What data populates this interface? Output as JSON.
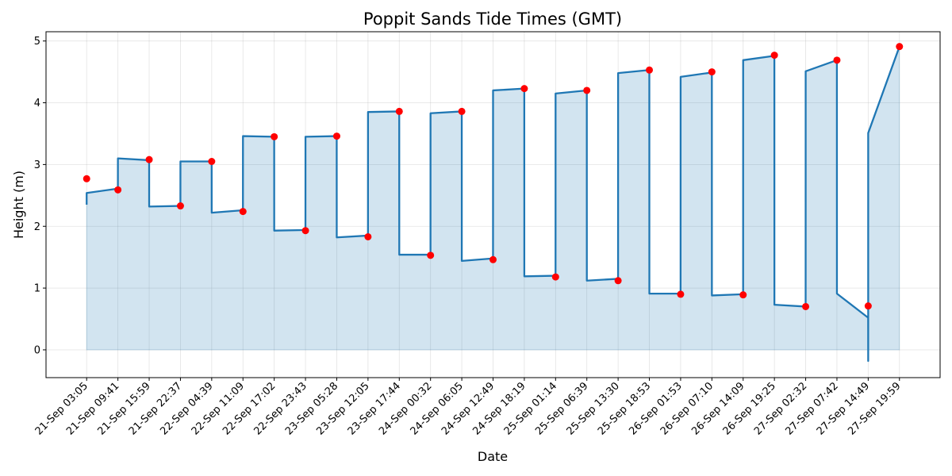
{
  "chart_data": {
    "type": "line",
    "title": "Poppit Sands Tide Times (GMT)",
    "xlabel": "Date",
    "ylabel": "Height (m)",
    "ylim": [
      -0.45,
      5.15
    ],
    "yticks": [
      0,
      1,
      2,
      3,
      4,
      5
    ],
    "grid": true,
    "colors": {
      "line": "#1f77b4",
      "fill": "#1f77b4",
      "marker": "#ff0000"
    },
    "categories": [
      "21-Sep 03:05",
      "21-Sep 09:41",
      "21-Sep 15:59",
      "21-Sep 22:37",
      "22-Sep 04:39",
      "22-Sep 11:09",
      "22-Sep 17:02",
      "22-Sep 23:43",
      "23-Sep 05:28",
      "23-Sep 12:05",
      "23-Sep 17:44",
      "24-Sep 00:32",
      "24-Sep 06:05",
      "24-Sep 12:49",
      "24-Sep 18:19",
      "25-Sep 01:14",
      "25-Sep 06:39",
      "25-Sep 13:30",
      "25-Sep 18:53",
      "26-Sep 01:53",
      "26-Sep 07:10",
      "26-Sep 14:09",
      "26-Sep 19:25",
      "27-Sep 02:32",
      "27-Sep 07:42",
      "27-Sep 14:49",
      "27-Sep 19:59"
    ],
    "series": [
      {
        "values": [
          2.77,
          2.59,
          3.08,
          2.33,
          3.05,
          2.24,
          3.45,
          1.93,
          3.46,
          1.83,
          3.86,
          1.53,
          3.86,
          1.46,
          4.23,
          1.18,
          4.2,
          1.12,
          4.53,
          0.9,
          4.5,
          0.89,
          4.77,
          0.7,
          4.69,
          0.71,
          4.91
        ]
      }
    ],
    "interpolated_curve": {
      "x": [
        0,
        0,
        0.999,
        1,
        1.999,
        2,
        2.999,
        3,
        3.999,
        4,
        4.999,
        5,
        5.999,
        6,
        6.999,
        7,
        7.999,
        8,
        8.999,
        9,
        9.999,
        10,
        10.999,
        11,
        11.999,
        12,
        12.999,
        13,
        13.999,
        14,
        14.999,
        15,
        15.999,
        16,
        16.999,
        17,
        17.999,
        18,
        18.999,
        19,
        19.999,
        20,
        20.999,
        21,
        21.999,
        22,
        22.999,
        23,
        23.999,
        24,
        24.999,
        25,
        25,
        26
      ],
      "y": [
        2.35,
        2.54,
        2.61,
        3.1,
        3.07,
        2.32,
        2.33,
        3.05,
        3.05,
        2.22,
        2.26,
        3.46,
        3.45,
        1.93,
        1.94,
        3.45,
        3.46,
        1.82,
        1.85,
        3.85,
        3.86,
        1.54,
        1.54,
        3.83,
        3.86,
        1.44,
        1.48,
        4.2,
        4.23,
        1.19,
        1.2,
        4.15,
        4.2,
        1.12,
        1.15,
        4.48,
        4.53,
        0.91,
        0.91,
        4.42,
        4.49,
        0.88,
        0.9,
        4.69,
        4.76,
        0.73,
        0.7,
        4.51,
        4.69,
        0.91,
        0.52,
        -0.18,
        3.51,
        4.91
      ]
    }
  }
}
